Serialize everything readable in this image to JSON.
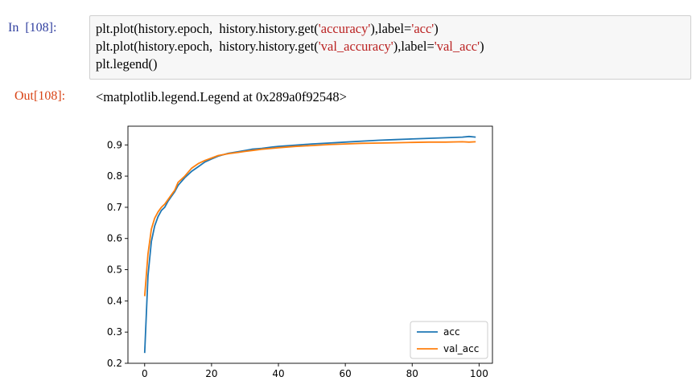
{
  "cell": {
    "in_prompt": "In  [108]:",
    "out_prompt": "Out[108]:",
    "code_lines": [
      [
        {
          "t": "plt.plot(history.epoch,  history.history.get(",
          "s": false
        },
        {
          "t": "'accuracy'",
          "s": true
        },
        {
          "t": "),label=",
          "s": false
        },
        {
          "t": "'acc'",
          "s": true
        },
        {
          "t": ")",
          "s": false
        }
      ],
      [
        {
          "t": "plt.plot(history.epoch,  history.history.get(",
          "s": false
        },
        {
          "t": "'val_accuracy'",
          "s": true
        },
        {
          "t": "),label=",
          "s": false
        },
        {
          "t": "'val_acc'",
          "s": true
        },
        {
          "t": ")",
          "s": false
        }
      ],
      [
        {
          "t": "plt.legend()",
          "s": false
        }
      ]
    ],
    "output_text": "<matplotlib.legend.Legend at 0x289a0f92548>"
  },
  "colors": {
    "prompt_in": "#303f9f",
    "prompt_out": "#d84315",
    "string": "#ba2121",
    "acc": "#1f77b4",
    "val_acc": "#ff7f0e"
  },
  "chart_data": {
    "type": "line",
    "xlim": [
      -5,
      104
    ],
    "ylim": [
      0.2,
      0.96
    ],
    "xticks": [
      0,
      20,
      40,
      60,
      80,
      100
    ],
    "yticks": [
      0.2,
      0.3,
      0.4,
      0.5,
      0.6,
      0.7,
      0.8,
      0.9
    ],
    "grid": false,
    "legend_position": "lower-right",
    "series": [
      {
        "name": "acc",
        "color": "#1f77b4",
        "x": [
          0,
          1,
          2,
          3,
          4,
          5,
          6,
          7,
          8,
          9,
          10,
          12,
          14,
          16,
          18,
          20,
          22,
          25,
          28,
          30,
          32,
          35,
          38,
          40,
          45,
          50,
          55,
          60,
          65,
          70,
          75,
          80,
          85,
          90,
          95,
          97,
          99
        ],
        "y": [
          0.233,
          0.48,
          0.59,
          0.64,
          0.67,
          0.69,
          0.7,
          0.72,
          0.735,
          0.75,
          0.77,
          0.795,
          0.815,
          0.83,
          0.845,
          0.855,
          0.864,
          0.873,
          0.878,
          0.882,
          0.886,
          0.889,
          0.893,
          0.895,
          0.899,
          0.903,
          0.906,
          0.909,
          0.912,
          0.915,
          0.917,
          0.919,
          0.921,
          0.923,
          0.925,
          0.927,
          0.925
        ]
      },
      {
        "name": "val_acc",
        "color": "#ff7f0e",
        "x": [
          0,
          1,
          2,
          3,
          4,
          5,
          6,
          7,
          8,
          9,
          10,
          12,
          14,
          16,
          18,
          20,
          22,
          25,
          28,
          30,
          32,
          35,
          38,
          40,
          45,
          50,
          55,
          60,
          65,
          70,
          75,
          80,
          85,
          90,
          95,
          97,
          99
        ],
        "y": [
          0.415,
          0.55,
          0.63,
          0.665,
          0.685,
          0.7,
          0.71,
          0.725,
          0.74,
          0.755,
          0.78,
          0.8,
          0.825,
          0.84,
          0.85,
          0.858,
          0.866,
          0.872,
          0.876,
          0.879,
          0.882,
          0.886,
          0.889,
          0.891,
          0.895,
          0.898,
          0.901,
          0.903,
          0.905,
          0.906,
          0.907,
          0.908,
          0.909,
          0.909,
          0.91,
          0.909,
          0.91
        ]
      }
    ]
  }
}
